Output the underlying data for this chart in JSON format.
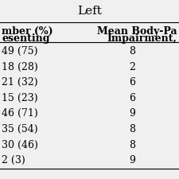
{
  "title": "Left",
  "col1_header_line1": "mber (%)",
  "col1_header_line2": "esenting",
  "col2_header_line1": "Mean Body-Pa",
  "col2_header_line2": "Impairment,",
  "rows": [
    {
      "col1": "49 (75)",
      "col2": "8"
    },
    {
      "col1": "18 (28)",
      "col2": "2"
    },
    {
      "col1": "21 (32)",
      "col2": "6"
    },
    {
      "col1": "15 (23)",
      "col2": "6"
    },
    {
      "col1": "46 (71)",
      "col2": "9"
    },
    {
      "col1": "35 (54)",
      "col2": "8"
    },
    {
      "col1": "30 (46)",
      "col2": "8"
    },
    {
      "col1": "2 (3)",
      "col2": "9"
    }
  ],
  "bg_color": "#f0f0f0",
  "text_color": "#000000",
  "font_size": 9,
  "title_font_size": 11
}
